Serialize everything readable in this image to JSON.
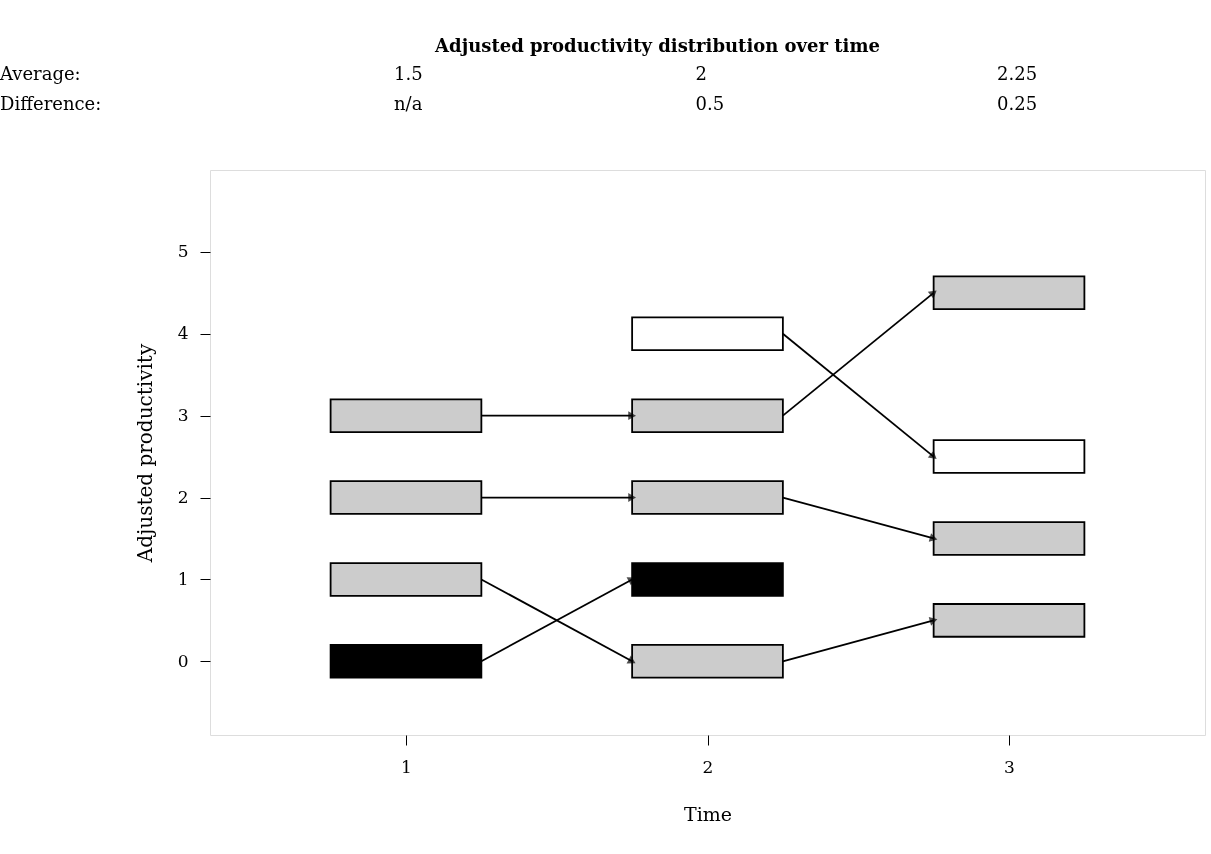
{
  "chart_data": {
    "type": "bar",
    "title": "Adjusted productivity distribution over time",
    "xlabel": "Time",
    "ylabel": "Adjusted productivity",
    "annotations": [
      "Average:",
      "1.5",
      "2",
      "2.25",
      "Difference:",
      "n/a",
      "0.5",
      "0.25"
    ],
    "xlim": [
      0.35,
      3.65
    ],
    "xticks": [
      1,
      2,
      3
    ],
    "ylim": [
      -0.9,
      6.0
    ],
    "yticks": [
      0,
      1,
      2,
      3,
      4,
      5
    ],
    "grid": false,
    "series": [
      {
        "color": "#cccccc",
        "x": [
          1,
          2,
          3
        ],
        "base": [
          0.8,
          -0.2,
          0.3
        ],
        "values": [
          0.4,
          0.4,
          0.4
        ]
      },
      {
        "color": "#cccccc",
        "x": [
          1,
          2,
          3
        ],
        "base": [
          1.8,
          1.8,
          1.3
        ],
        "values": [
          0.4,
          0.4,
          0.4
        ]
      },
      {
        "color": "#cccccc",
        "x": [
          1,
          2,
          3
        ],
        "base": [
          2.8,
          2.8,
          4.3
        ],
        "values": [
          0.4,
          0.4,
          0.4
        ]
      },
      {
        "color": "#000000",
        "x": [
          1,
          2
        ],
        "base": [
          -0.2,
          0.8
        ],
        "values": [
          0.4,
          0.4
        ]
      },
      {
        "color": "#ffffff",
        "x": [
          2,
          3
        ],
        "base": [
          3.8,
          2.3
        ],
        "values": [
          0.4,
          0.4
        ]
      },
      {
        "type": "line",
        "color": "#000000",
        "x": [
          1.25,
          1.75
        ],
        "values": [
          3,
          3
        ]
      },
      {
        "type": "line",
        "color": "#000000",
        "x": [
          1.25,
          1.75
        ],
        "values": [
          2,
          2
        ]
      },
      {
        "type": "line",
        "color": "#000000",
        "x": [
          1.25,
          1.75
        ],
        "values": [
          1,
          0
        ]
      },
      {
        "type": "line",
        "color": "#000000",
        "x": [
          1.25,
          1.75
        ],
        "values": [
          0,
          1
        ]
      },
      {
        "type": "line",
        "color": "#000000",
        "x": [
          2.25,
          2.75
        ],
        "values": [
          4,
          2.5
        ]
      },
      {
        "type": "line",
        "color": "#000000",
        "x": [
          2.25,
          2.75
        ],
        "values": [
          3,
          4.5
        ]
      },
      {
        "type": "line",
        "color": "#000000",
        "x": [
          2.25,
          2.75
        ],
        "values": [
          2,
          1.5
        ]
      },
      {
        "type": "line",
        "color": "#000000",
        "x": [
          2.25,
          2.75
        ],
        "values": [
          0,
          0.5
        ]
      }
    ]
  }
}
